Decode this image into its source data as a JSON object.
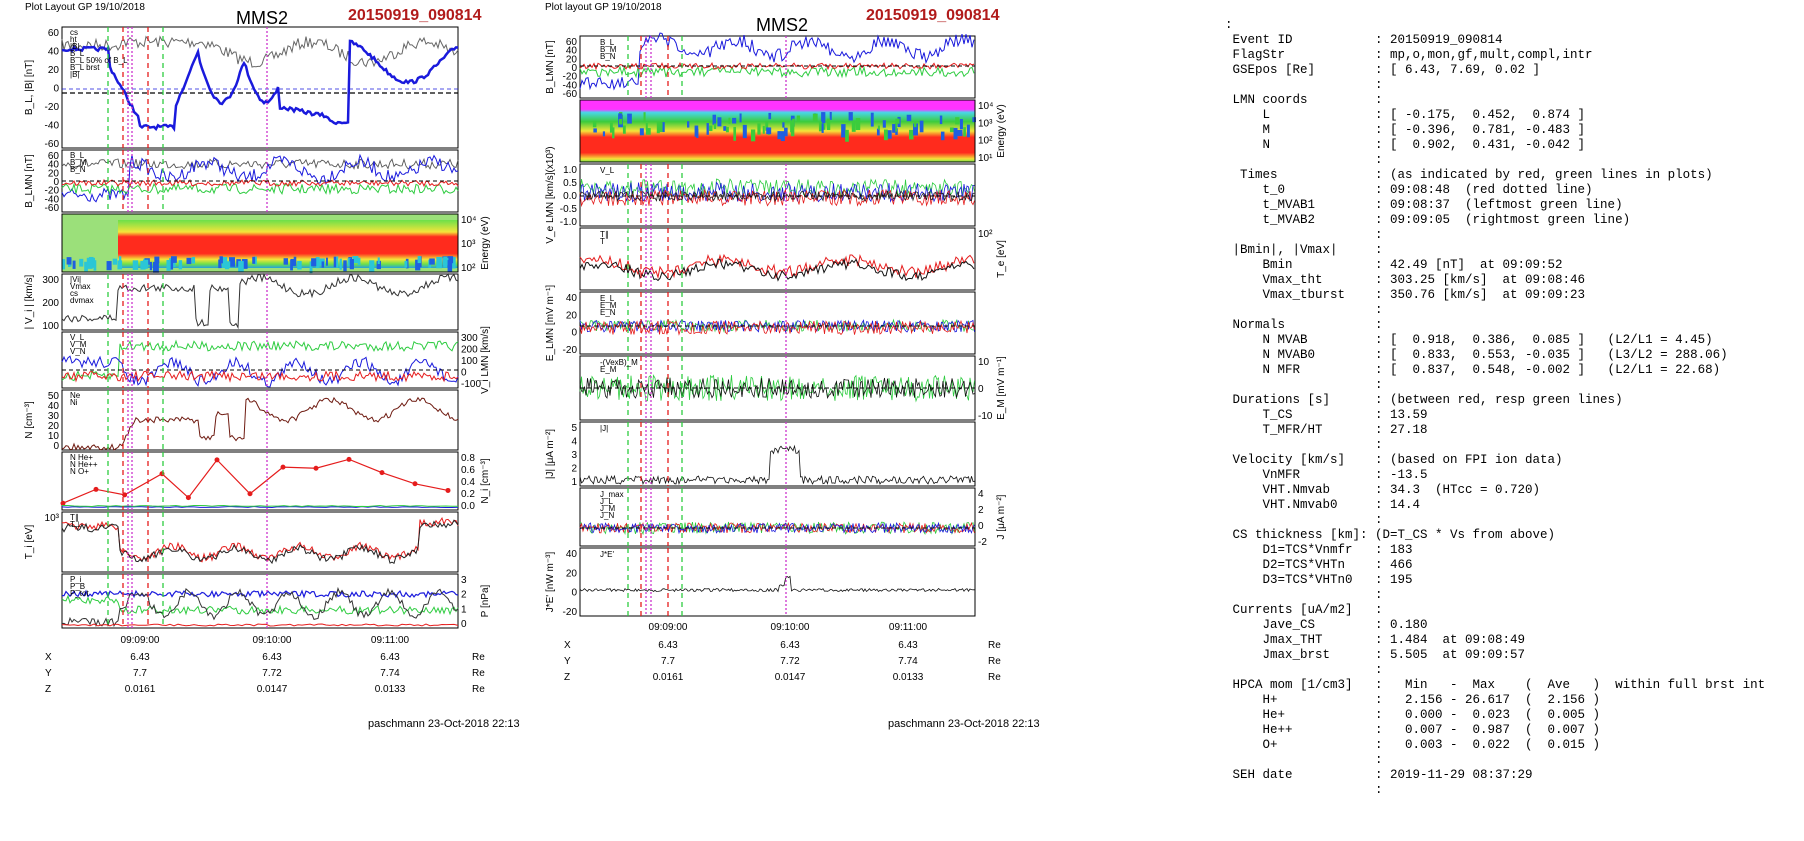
{
  "left": {
    "header": "Plot Layout GP 19/10/2018",
    "spacecraft": "MMS2",
    "event": "20150919_090814",
    "footer": "paschmann 23-Oct-2018 22:13",
    "time_labels": [
      "09:09:00",
      "09:10:00",
      "09:11:00"
    ],
    "pos_rows": [
      {
        "label": "X",
        "values": [
          "6.43",
          "6.43",
          "6.43"
        ],
        "unit": "Re"
      },
      {
        "label": "Y",
        "values": [
          "7.7",
          "7.72",
          "7.74"
        ],
        "unit": "Re"
      },
      {
        "label": "Z",
        "values": [
          "0.0161",
          "0.0147",
          "0.0133"
        ],
        "unit": "Re"
      }
    ],
    "panels": [
      {
        "ylabel": "B_L, |B| [nT]",
        "ticks": [
          "60",
          "40",
          "20",
          "0",
          "-20",
          "-40",
          "-60"
        ],
        "legend": [
          "cs",
          "ht",
          "|B|",
          "B_L",
          "B_L 50% of B_L",
          "B_L brst",
          "|B|"
        ]
      },
      {
        "ylabel": "B_LMN [nT]",
        "ticks": [
          "60",
          "40",
          "20",
          "0",
          "-20",
          "-40",
          "-60"
        ],
        "legend": [
          "B_L",
          "B_M",
          "B_N"
        ]
      },
      {
        "ylabel_right": "Energy (eV)",
        "ticks_right": [
          "10⁴",
          "10³",
          "10²"
        ]
      },
      {
        "ylabel": "| V_i | [km/s]",
        "ticks": [
          "300",
          "200",
          "100"
        ],
        "legend": [
          "|Vi|",
          "Vmax",
          "cs",
          "dvmax"
        ]
      },
      {
        "ylabel_right": "V_i LMN [km/s]",
        "ticks_right": [
          "300",
          "200",
          "100",
          "0",
          "-100"
        ],
        "legend": [
          "V_L",
          "V_M",
          "V_N"
        ]
      },
      {
        "ylabel": "N [cm⁻³]",
        "ticks": [
          "50",
          "40",
          "30",
          "20",
          "10",
          "0"
        ],
        "legend": [
          "Ne",
          "Ni"
        ]
      },
      {
        "ylabel_right": "N_i [cm⁻³]",
        "ticks_right": [
          "0.8",
          "0.6",
          "0.4",
          "0.2",
          "0.0"
        ],
        "legend": [
          "N He+",
          "N He++",
          "N O+"
        ]
      },
      {
        "ylabel": "T_i [eV]",
        "ticks": [
          "10³"
        ],
        "legend": [
          "T∥",
          "T⊥"
        ]
      },
      {
        "ylabel_right": "P [nPa]",
        "ticks_right": [
          "3",
          "2",
          "1",
          "0"
        ],
        "legend": [
          "P_i",
          "P_B",
          "P_tot"
        ]
      }
    ]
  },
  "middle": {
    "header": "Plot layout GP 19/10/2018",
    "spacecraft": "MMS2",
    "event": "20150919_090814",
    "footer": "paschmann 23-Oct-2018 22:13",
    "time_labels": [
      "09:09:00",
      "09:10:00",
      "09:11:00"
    ],
    "pos_rows": [
      {
        "label": "X",
        "values": [
          "6.43",
          "6.43",
          "6.43"
        ],
        "unit": "Re"
      },
      {
        "label": "Y",
        "values": [
          "7.7",
          "7.72",
          "7.74"
        ],
        "unit": "Re"
      },
      {
        "label": "Z",
        "values": [
          "0.0161",
          "0.0147",
          "0.0133"
        ],
        "unit": "Re"
      }
    ],
    "panels": [
      {
        "ylabel": "B_LMN [nT]",
        "ticks": [
          "60",
          "40",
          "20",
          "0",
          "-20",
          "-40",
          "-60"
        ],
        "legend": [
          "B_L",
          "B_M",
          "B_N"
        ]
      },
      {
        "ylabel_right": "Energy (eV)",
        "ticks_right": [
          "10⁴",
          "10³",
          "10²",
          "10¹"
        ]
      },
      {
        "ylabel": "V_e LMN [km/s](x10³)",
        "ticks": [
          "1.0",
          "0.5",
          "0.0",
          "-0.5",
          "-1.0"
        ],
        "legend": [
          "V_L"
        ]
      },
      {
        "ylabel_right": "T_e [eV]",
        "ticks_right": [
          "10²"
        ],
        "legend": [
          "T∥",
          "T"
        ]
      },
      {
        "ylabel": "E_LMN [mV m⁻¹]",
        "ticks": [
          "40",
          "20",
          "0",
          "-20"
        ],
        "legend": [
          "E_L",
          "E_M",
          "E_N"
        ]
      },
      {
        "ylabel_right": "E_M [mV m⁻¹]",
        "ticks_right": [
          "10",
          "0",
          "-10"
        ],
        "legend": [
          "-(VexB)_M",
          "E_M"
        ]
      },
      {
        "ylabel": "|J| [μA m⁻²]",
        "ticks": [
          "5",
          "4",
          "3",
          "2",
          "1"
        ],
        "legend": [
          "|J|"
        ]
      },
      {
        "ylabel_right": "J [μA m⁻²]",
        "ticks_right": [
          "4",
          "2",
          "0",
          "-2"
        ],
        "legend": [
          "J_max",
          "J_L",
          "J_M",
          "J_N"
        ]
      },
      {
        "ylabel": "J*E' [nW m⁻³]",
        "ticks": [
          "40",
          "20",
          "0",
          "-20"
        ],
        "legend": [
          "J*E'"
        ]
      }
    ]
  },
  "info": {
    "lines": [
      ":",
      " Event ID           : 20150919_090814",
      " FlagStr            : mp,o,mon,gf,mult,compl,intr",
      " GSEpos [Re]        : [ 6.43, 7.69, 0.02 ]",
      "                    :",
      " LMN coords         :",
      "     L              : [ -0.175,  0.452,  0.874 ]",
      "     M              : [ -0.396,  0.781, -0.483 ]",
      "     N              : [  0.902,  0.431, -0.042 ]",
      "                    :",
      "  Times             : (as indicated by red, green lines in plots)",
      "     t_0            : 09:08:48  (red dotted line)",
      "     t_MVAB1        : 09:08:37  (leftmost green line)",
      "     t_MVAB2        : 09:09:05  (rightmost green line)",
      "                    :",
      " |Bmin|, |Vmax|     :",
      "     Bmin           : 42.49 [nT]  at 09:09:52",
      "     Vmax_tht       : 303.25 [km/s]  at 09:08:46",
      "     Vmax_tburst    : 350.76 [km/s]  at 09:09:23",
      "                    :",
      " Normals            :",
      "     N MVAB         : [  0.918,  0.386,  0.085 ]   (L2/L1 = 4.45)",
      "     N MVAB0        : [  0.833,  0.553, -0.035 ]   (L3/L2 = 288.06)",
      "     N MFR          : [  0.837,  0.548, -0.002 ]   (L2/L1 = 22.68)",
      "                    :",
      " Durations [s]      : (between red, resp green lines)",
      "     T_CS           : 13.59",
      "     T_MFR/HT       : 27.18",
      "                    :",
      " Velocity [km/s]    : (based on FPI ion data)",
      "     VnMFR          : -13.5",
      "     VHT.Nmvab      : 34.3  (HTcc = 0.720)",
      "     VHT.Nmvab0     : 14.4",
      "                    :",
      " CS thickness [km]: (D=T_CS * Vs from above)",
      "     D1=TCS*Vnmfr   : 183",
      "     D2=TCS*VHTn    : 466",
      "     D3=TCS*VHTn0   : 195",
      "                    :",
      " Currents [uA/m2]   :",
      "     Jave_CS        : 0.180",
      "     Jmax_THT       : 1.484  at 09:08:49",
      "     Jmax_brst      : 5.505  at 09:09:57",
      "                    :",
      " HPCA mom [1/cm3]   :   Min   -  Max    (  Ave   )  within full brst int",
      "     H+             :   2.156 - 26.617  (  2.156 )",
      "     He+            :   0.000 -  0.023  (  0.005 )",
      "     He++           :   0.007 -  0.987  (  0.007 )",
      "     O+             :   0.003 -  0.022  (  0.015 )",
      "                    :",
      " SEH date           : 2019-11-29 08:37:29",
      "                    :"
    ]
  },
  "chart_data": [
    {
      "type": "line",
      "title": "MMS2 20150919_090814",
      "xlabel": "",
      "x_ticks": [
        "09:09:00",
        "09:10:00",
        "09:11:00"
      ],
      "panels": [
        "B_L, |B| [nT]",
        "B_LMN [nT]",
        "Energy (eV)",
        "| V_i | [km/s]",
        "V_i LMN [km/s]",
        "N [cm⁻³]",
        "N_i [cm⁻³]",
        "T_i [eV]",
        "P [nPa]"
      ],
      "series": [
        {
          "name": "N He++",
          "x": [
            "09:08:25",
            "09:08:40",
            "09:08:53",
            "09:09:10",
            "09:09:22",
            "09:09:35",
            "09:09:50",
            "09:10:05",
            "09:10:20",
            "09:10:35",
            "09:10:50",
            "09:11:05",
            "09:11:20"
          ],
          "values": [
            0.05,
            0.3,
            0.2,
            0.58,
            0.15,
            0.83,
            0.22,
            0.7,
            0.68,
            0.84,
            0.6,
            0.4,
            0.28
          ]
        }
      ]
    },
    {
      "type": "line",
      "title": "MMS2 20150919_090814",
      "xlabel": "",
      "x_ticks": [
        "09:09:00",
        "09:10:00",
        "09:11:00"
      ],
      "panels": [
        "B_LMN [nT]",
        "Energy (eV)",
        "V_e LMN [km/s]",
        "T_e [eV]",
        "E_LMN [mV m⁻¹]",
        "E_M [mV m⁻¹]",
        "|J| [μA m⁻²]",
        "J [μA m⁻²]",
        "J*E' [nW m⁻³]"
      ]
    }
  ],
  "colors": {
    "event": "#b11b1b",
    "blue": "#1a1adc",
    "green": "#2ecc40",
    "red": "#e51c1c",
    "magenta": "#cc33cc"
  }
}
